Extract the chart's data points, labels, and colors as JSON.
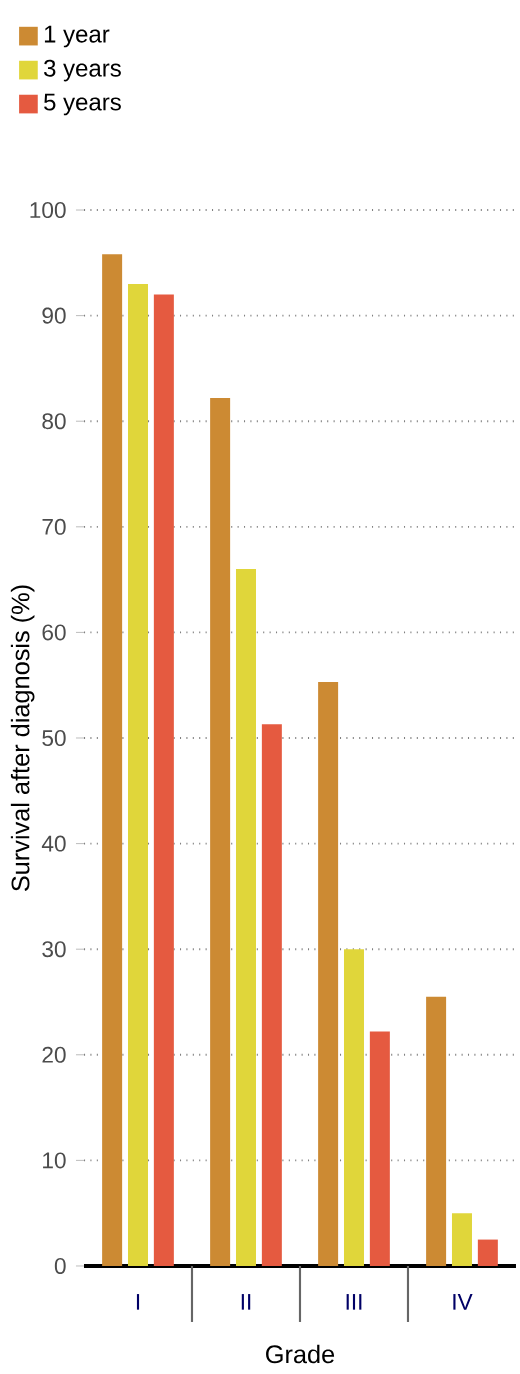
{
  "chart_data": {
    "type": "bar",
    "xlabel": "Grade",
    "ylabel": "Survival after diagnosis (%)",
    "categories": [
      "I",
      "II",
      "III",
      "IV"
    ],
    "series": [
      {
        "name": "1 year",
        "color": "#cc8a33",
        "values": [
          95.8,
          82.2,
          55.3,
          25.5
        ]
      },
      {
        "name": "3 years",
        "color": "#e0d63a",
        "values": [
          93,
          66,
          30,
          5
        ]
      },
      {
        "name": "5 years",
        "color": "#e55a40",
        "values": [
          92,
          51.3,
          22.2,
          2.5
        ]
      }
    ],
    "ylim": [
      0,
      100
    ],
    "yticks": [
      0,
      10,
      20,
      30,
      40,
      50,
      60,
      70,
      80,
      90,
      100
    ],
    "grid": "y",
    "legend": "top left"
  }
}
